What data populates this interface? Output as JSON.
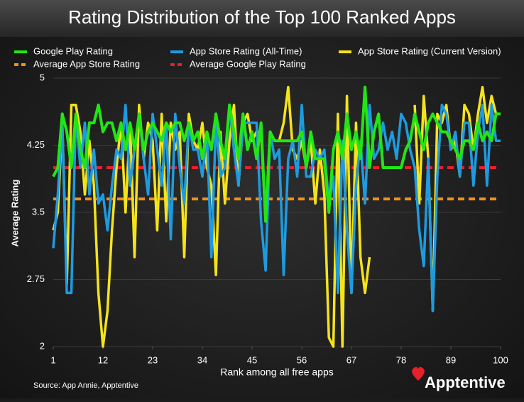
{
  "chart_data": {
    "type": "line",
    "title": "Rating Distribution of the Top 100 Ranked Apps",
    "x_label": "Rank among all free apps",
    "y_label": "Average Rating",
    "source": "Source: App Annie, Apptentive",
    "logo": "Apptentive",
    "x": [
      1,
      2,
      3,
      4,
      5,
      6,
      7,
      8,
      9,
      10,
      11,
      12,
      13,
      14,
      15,
      16,
      17,
      18,
      19,
      20,
      21,
      22,
      23,
      24,
      25,
      26,
      27,
      28,
      29,
      30,
      31,
      32,
      33,
      34,
      35,
      36,
      37,
      38,
      39,
      40,
      41,
      42,
      43,
      44,
      45,
      46,
      47,
      48,
      49,
      50,
      51,
      52,
      53,
      54,
      55,
      56,
      57,
      58,
      59,
      60,
      61,
      62,
      63,
      64,
      65,
      66,
      67,
      68,
      69,
      70,
      71,
      72,
      73,
      74,
      75,
      76,
      77,
      78,
      79,
      80,
      81,
      82,
      83,
      84,
      85,
      86,
      87,
      88,
      89,
      90,
      91,
      92,
      93,
      94,
      95,
      96,
      97,
      98,
      99,
      100
    ],
    "xlim": [
      1,
      100
    ],
    "xticks": [
      1,
      12,
      23,
      34,
      45,
      56,
      67,
      78,
      89,
      100
    ],
    "ylim": [
      2,
      5
    ],
    "yticks": [
      2,
      2.75,
      3.5,
      4.25,
      5
    ],
    "series": [
      {
        "name": "Google Play Rating",
        "color": "#22e614",
        "values": [
          3.9,
          4.0,
          4.6,
          4.4,
          4.0,
          4.6,
          4.2,
          4.0,
          4.5,
          4.5,
          4.7,
          4.4,
          4.5,
          4.5,
          4.3,
          4.5,
          4.2,
          4.5,
          4.2,
          4.6,
          4.2,
          4.4,
          4.5,
          4.4,
          4.3,
          4.5,
          4.4,
          4.5,
          4.5,
          4.3,
          4.5,
          4.3,
          4.4,
          4.1,
          4.4,
          4.2,
          4.6,
          4.3,
          4.1,
          4.7,
          4.4,
          4.1,
          4.6,
          4.2,
          4.4,
          4.1,
          4.5,
          3.4,
          4.4,
          4.3,
          4.3,
          4.3,
          4.3,
          4.3,
          4.3,
          4.4,
          4.0,
          4.4,
          4.1,
          4.1,
          4.1,
          3.5,
          4.2,
          4.4,
          4.1,
          4.6,
          4.2,
          4.4,
          4.1,
          4.9,
          4.0,
          4.4,
          4.6,
          4.0,
          4.0,
          4.0,
          4.0,
          4.0,
          4.2,
          4.3,
          4.6,
          4.4,
          4.2,
          4.5,
          4.6,
          4.5,
          4.4,
          4.4,
          4.3,
          4.2,
          4.1,
          4.3,
          4.3,
          4.2,
          4.5,
          4.3,
          4.4,
          4.3,
          4.6,
          4.6
        ]
      },
      {
        "name": "App Store Rating (All-Time)",
        "color": "#1e9be0",
        "values": [
          3.1,
          3.7,
          4.5,
          2.6,
          2.6,
          4.6,
          4.0,
          4.5,
          3.7,
          4.2,
          3.6,
          3.7,
          3.3,
          3.8,
          4.2,
          4.1,
          4.7,
          3.8,
          4.2,
          4.6,
          4.1,
          3.7,
          4.6,
          4.2,
          3.8,
          4.5,
          3.2,
          4.6,
          4.0,
          3.6,
          4.5,
          4.2,
          4.2,
          3.9,
          4.4,
          3.0,
          4.5,
          3.9,
          4.0,
          4.7,
          4.2,
          3.8,
          4.5,
          4.5,
          4.5,
          4.5,
          3.4,
          2.85,
          4.4,
          4.1,
          4.2,
          2.8,
          4.1,
          4.3,
          3.9,
          4.7,
          3.9,
          3.9,
          4.2,
          4.1,
          4.2,
          3.6,
          3.9,
          2.6,
          4.3,
          3.3,
          2.6,
          3.8,
          4.3,
          3.6,
          4.7,
          4.1,
          4.2,
          4.5,
          4.2,
          4.4,
          4.1,
          4.6,
          4.5,
          4.2,
          4.0,
          3.3,
          2.9,
          4.1,
          2.4,
          3.9,
          4.7,
          4.6,
          4.2,
          4.4,
          3.9,
          4.5,
          4.5,
          3.8,
          4.4,
          4.7,
          3.8,
          4.7,
          4.3,
          4.3
        ]
      },
      {
        "name": "App Store Rating (Current Version)",
        "color": "#f5e31a",
        "values": [
          3.3,
          3.5,
          4.5,
          2.7,
          4.7,
          4.7,
          4.4,
          3.7,
          4.3,
          3.8,
          2.6,
          2.0,
          2.4,
          3.3,
          4.0,
          4.5,
          3.5,
          4.5,
          3.0,
          4.7,
          4.1,
          4.5,
          4.3,
          3.3,
          4.6,
          3.4,
          4.5,
          4.2,
          4.4,
          3.0,
          4.6,
          4.3,
          4.2,
          4.5,
          4.0,
          3.8,
          2.8,
          4.4,
          3.6,
          4.3,
          4.7,
          3.8,
          4.5,
          4.6,
          4.3,
          4.4,
          4.4,
          3.4,
          4.4,
          4.3,
          4.3,
          4.5,
          4.9,
          4.2,
          4.1,
          4.3,
          4.0,
          4.3,
          3.6,
          4.2,
          3.7,
          2.1,
          2.0,
          4.6,
          2.0,
          4.8,
          2.6,
          4.5,
          3.0,
          2.6,
          3.0,
          null,
          null,
          null,
          null,
          null,
          null,
          null,
          null,
          null,
          4.7,
          3.6,
          4.8,
          4.1,
          2.4,
          4.6,
          4.5,
          4.7,
          4.2,
          4.3,
          3.9,
          4.7,
          4.6,
          4.2,
          4.6,
          4.9,
          4.5,
          4.8,
          4.6,
          4.6
        ]
      }
    ],
    "reference_lines": [
      {
        "name": "Average App Store Rating",
        "color": "#f0901e",
        "value": 3.65
      },
      {
        "name": "Average Google Play Rating",
        "color": "#e8202a",
        "value": 4.0
      }
    ]
  }
}
